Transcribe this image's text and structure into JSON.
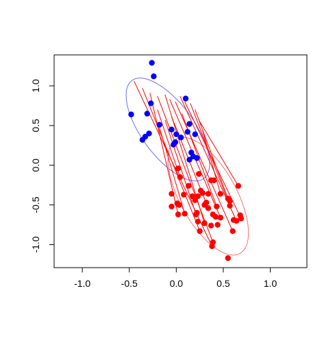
{
  "chart_data": {
    "type": "scatter",
    "xlim": [
      -1.3,
      1.39
    ],
    "ylim": [
      -1.29,
      1.39
    ],
    "xticks": [
      {
        "value": -1,
        "label": "-1.0"
      },
      {
        "value": -0.5,
        "label": "-0.5"
      },
      {
        "value": 0,
        "label": "0.0"
      },
      {
        "value": 0.5,
        "label": "0.5"
      },
      {
        "value": 1,
        "label": "1.0"
      }
    ],
    "yticks": [
      {
        "value": -1,
        "label": "-1.0"
      },
      {
        "value": -0.5,
        "label": "-0.5"
      },
      {
        "value": 0,
        "label": "0.0"
      },
      {
        "value": 0.5,
        "label": "0.5"
      },
      {
        "value": 1,
        "label": "1.0"
      }
    ],
    "segments": {
      "color": "#ff0000",
      "x0": [
        -0.45,
        -0.36,
        -0.28,
        -0.2,
        -0.12,
        -0.07,
        -0.01,
        0.04,
        0.09,
        0.15,
        0.24,
        -0.12,
        -0.18,
        -0.05,
        0.06,
        0.2,
        0.28,
        -0.2
      ],
      "y0": [
        1.06,
        0.97,
        0.91,
        0.87,
        0.89,
        0.83,
        0.8,
        0.87,
        0.8,
        0.78,
        0.57,
        0.57,
        0.48,
        0.61,
        0.65,
        0.7,
        0.44,
        0.7
      ],
      "x1": [
        0.38,
        0.25,
        0.02,
        0.39,
        0.3,
        0.47,
        0.6,
        0.64,
        0.69,
        0.57,
        0.66,
        0.21,
        0.09,
        0.34,
        0.43,
        0.55,
        0.47,
        0.04
      ],
      "y1": [
        -1.02,
        -0.83,
        -0.62,
        -0.97,
        -0.73,
        -0.66,
        -0.83,
        -0.7,
        -0.67,
        -0.51,
        -0.26,
        -0.62,
        -0.61,
        -0.54,
        -0.52,
        -0.42,
        -0.36,
        -0.15
      ]
    },
    "ellipses": [
      {
        "color": "#6b6bff",
        "center": [
          -0.09,
          0.45
        ],
        "axis1": [
          0.38,
          -0.62
        ],
        "axis2": [
          0.23,
          0.19
        ]
      },
      {
        "color": "#ff6b6b",
        "center": [
          0.34,
          -0.39
        ],
        "axis1": [
          0.34,
          -0.72
        ],
        "axis2": [
          0.26,
          0.18
        ]
      }
    ],
    "series": [
      {
        "color": "#0000ff",
        "x": [
          -0.26,
          -0.24,
          -0.48,
          -0.27,
          0.1,
          -0.31,
          -0.18,
          0.14,
          0.12,
          -0.29,
          -0.33,
          -0.36,
          -0.05,
          0.0,
          0.05,
          -0.01,
          -0.03,
          0.2,
          0.16,
          0.18,
          0.22,
          0.14
        ],
        "y": [
          1.29,
          1.12,
          0.64,
          0.78,
          0.84,
          0.65,
          0.51,
          0.52,
          0.42,
          0.4,
          0.36,
          0.32,
          0.45,
          0.39,
          0.35,
          0.29,
          0.26,
          0.39,
          0.16,
          0.11,
          0.09,
          0.07
        ]
      },
      {
        "color": "#ff0000",
        "x": [
          0.02,
          0.04,
          0.24,
          0.13,
          0.37,
          0.4,
          0.66,
          0.47,
          0.55,
          0.26,
          0.17,
          0.23,
          0.01,
          0.03,
          0.08,
          0.2,
          0.28,
          0.3,
          0.34,
          0.43,
          0.32,
          0.39,
          0.42,
          0.47,
          0.57,
          0.57,
          0.64,
          0.68,
          0.69,
          0.61,
          0.02,
          0.09,
          0.21,
          0.23,
          0.3,
          0.25,
          0.37,
          0.44,
          0.6,
          0.39,
          0.38,
          0.55,
          -0.05,
          0.34,
          -0.05,
          0.22
        ],
        "y": [
          -0.04,
          -0.15,
          -0.11,
          -0.26,
          -0.19,
          -0.19,
          -0.26,
          -0.36,
          -0.42,
          -0.32,
          -0.39,
          -0.39,
          -0.48,
          -0.5,
          -0.37,
          -0.44,
          -0.35,
          -0.5,
          -0.54,
          -0.52,
          -0.47,
          -0.62,
          -0.65,
          -0.66,
          -0.45,
          -0.51,
          -0.7,
          -0.63,
          -0.67,
          -0.69,
          -0.62,
          -0.61,
          -0.62,
          -0.71,
          -0.73,
          -0.83,
          -0.76,
          -0.75,
          -0.83,
          -0.97,
          -1.02,
          -1.17,
          -0.36,
          -0.36,
          -0.52,
          -0.6
        ]
      }
    ]
  }
}
